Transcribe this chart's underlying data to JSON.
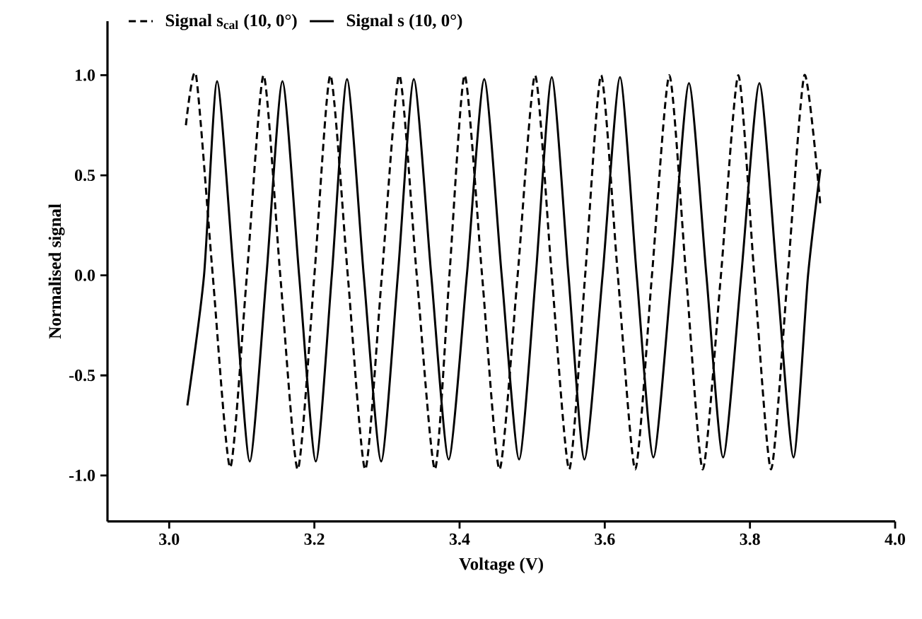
{
  "chart_data": {
    "type": "line",
    "xlabel": "Voltage (V)",
    "ylabel": "Normalised signal",
    "xlim": [
      2.915,
      4.0
    ],
    "xticks": [
      {
        "value": 3.0,
        "label": "3.0"
      },
      3.2,
      3.4,
      3.6,
      3.8,
      {
        "value": 4.0,
        "label": "4.0"
      }
    ],
    "ylim": [
      -1.23,
      1.27
    ],
    "yticks": [
      {
        "value": -1.0,
        "label": "-1.0"
      },
      -0.5,
      {
        "value": 0.0,
        "label": "0.0"
      },
      0.5,
      {
        "value": 1.0,
        "label": "1.0"
      }
    ],
    "legend": "top",
    "grid": false,
    "marker": "none",
    "series": [
      {
        "name": "Signal s$_{cal}$ (10, 0°)",
        "color": "#000000",
        "line_style": "dashed",
        "x": [
          3.023,
          3.037,
          3.06,
          3.084,
          3.107,
          3.13,
          3.153,
          3.177,
          3.2,
          3.222,
          3.246,
          3.27,
          3.293,
          3.317,
          3.341,
          3.366,
          3.386,
          3.407,
          3.431,
          3.455,
          3.48,
          3.504,
          3.527,
          3.551,
          3.573,
          3.595,
          3.618,
          3.642,
          3.665,
          3.689,
          3.712,
          3.735,
          3.76,
          3.784,
          3.806,
          3.829,
          3.852,
          3.875,
          3.897
        ],
        "values": [
          0.75,
          1.0,
          0.0,
          -0.96,
          0.0,
          1.0,
          0.0,
          -0.97,
          0.0,
          1.0,
          0.0,
          -0.97,
          0.0,
          1.0,
          0.0,
          -0.97,
          0.0,
          1.0,
          0.0,
          -0.97,
          0.0,
          1.0,
          0.0,
          -0.97,
          0.0,
          1.0,
          0.0,
          -0.97,
          0.0,
          1.0,
          0.0,
          -0.97,
          0.0,
          1.0,
          0.0,
          -0.97,
          0.0,
          1.0,
          0.35
        ]
      },
      {
        "name": "Signal s (10, 0°)",
        "color": "#000000",
        "line_style": "solid",
        "x": [
          3.025,
          3.048,
          3.066,
          3.089,
          3.111,
          3.134,
          3.156,
          3.179,
          3.202,
          3.224,
          3.245,
          3.268,
          3.292,
          3.315,
          3.337,
          3.361,
          3.385,
          3.41,
          3.434,
          3.458,
          3.482,
          3.505,
          3.527,
          3.55,
          3.572,
          3.597,
          3.621,
          3.644,
          3.667,
          3.692,
          3.716,
          3.74,
          3.763,
          3.788,
          3.813,
          3.837,
          3.86,
          3.88,
          3.897
        ],
        "values": [
          -0.65,
          0.0,
          0.97,
          0.0,
          -0.93,
          0.0,
          0.97,
          0.0,
          -0.93,
          0.0,
          0.98,
          0.0,
          -0.93,
          0.0,
          0.98,
          0.0,
          -0.92,
          0.0,
          0.98,
          0.0,
          -0.92,
          0.0,
          0.99,
          0.0,
          -0.92,
          0.0,
          0.99,
          0.0,
          -0.91,
          0.0,
          0.96,
          0.0,
          -0.91,
          0.0,
          0.96,
          0.0,
          -0.91,
          0.0,
          0.53
        ]
      }
    ]
  }
}
